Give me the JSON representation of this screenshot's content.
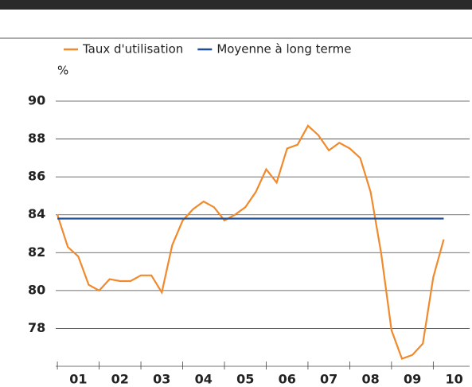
{
  "chart_data": {
    "type": "line",
    "y_label": "%",
    "x": [
      1,
      1.25,
      1.5,
      1.75,
      2,
      2.25,
      2.5,
      2.75,
      3,
      3.25,
      3.5,
      3.75,
      4,
      4.25,
      4.5,
      4.75,
      5,
      5.25,
      5.5,
      5.75,
      6,
      6.25,
      6.5,
      6.75,
      7,
      7.25,
      7.5,
      7.75,
      8,
      8.25,
      8.5,
      8.75,
      9,
      9.25,
      9.5,
      9.75,
      10,
      10.25
    ],
    "series": [
      {
        "name": "Taux d'utilisation",
        "color": "#f08a2c",
        "values": [
          84.0,
          82.3,
          81.8,
          80.3,
          80.0,
          80.6,
          80.5,
          80.5,
          80.8,
          80.8,
          79.9,
          82.4,
          83.7,
          84.3,
          84.7,
          84.4,
          83.7,
          84.0,
          84.4,
          85.2,
          86.4,
          85.7,
          87.5,
          87.7,
          88.7,
          88.2,
          87.4,
          87.8,
          87.5,
          87.0,
          85.2,
          82.0,
          77.9,
          76.4,
          76.6,
          77.2,
          80.7,
          82.7
        ]
      },
      {
        "name": "Moyenne à long terme",
        "color": "#1f4e96",
        "x": [
          1,
          10.25
        ],
        "values": [
          83.8,
          83.8
        ]
      }
    ],
    "xlim": [
      0.96,
      10.87
    ],
    "ylim": [
      76,
      90
    ],
    "yticks": [
      78,
      80,
      82,
      84,
      86,
      88,
      90
    ],
    "xticks": [
      {
        "value": 1.5,
        "label": "01"
      },
      {
        "value": 2.5,
        "label": "02"
      },
      {
        "value": 3.5,
        "label": "03"
      },
      {
        "value": 4.5,
        "label": "04"
      },
      {
        "value": 5.5,
        "label": "05"
      },
      {
        "value": 6.5,
        "label": "06"
      },
      {
        "value": 7.5,
        "label": "07"
      },
      {
        "value": 8.5,
        "label": "08"
      },
      {
        "value": 9.5,
        "label": "09"
      },
      {
        "value": 10.5,
        "label": "10"
      }
    ],
    "grid": true
  }
}
